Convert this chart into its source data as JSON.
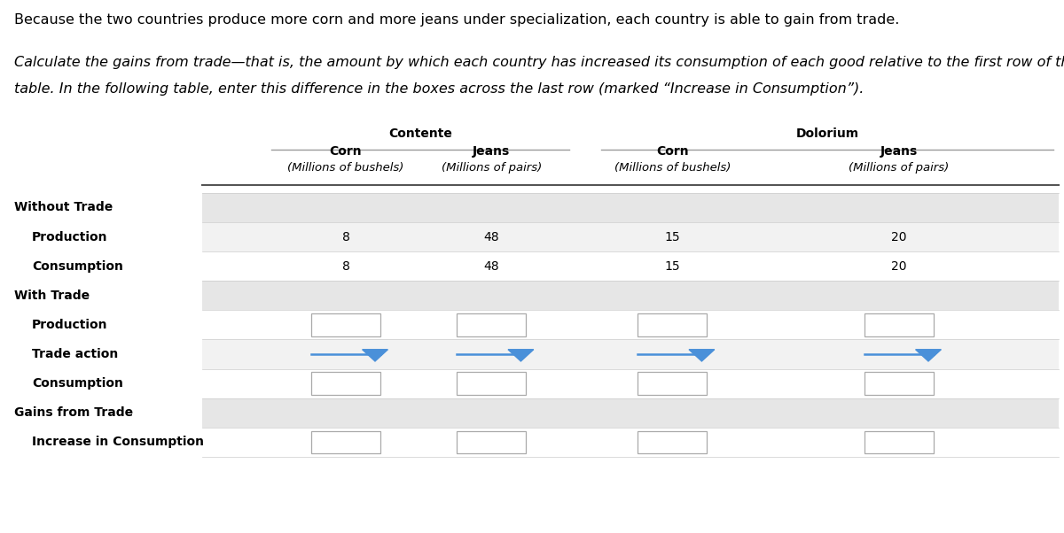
{
  "intro_text_1": "Because the two countries produce more corn and more jeans under specialization, each country is able to gain from trade.",
  "intro_text_2a": "Calculate the gains from trade—that is, the amount by which each country has increased its consumption of each good relative to the first row of the",
  "intro_text_2b": "table. In the following table, enter this difference in the boxes across the last row (marked “Increase in Consumption”).",
  "country1": "Contente",
  "country2": "Dolorium",
  "col_headers": [
    "Corn",
    "Jeans",
    "Corn",
    "Jeans"
  ],
  "col_subheaders": [
    "(Millions of bushels)",
    "(Millions of pairs)",
    "(Millions of bushels)",
    "(Millions of pairs)"
  ],
  "data_prod": [
    "8",
    "48",
    "15",
    "20"
  ],
  "data_cons": [
    "8",
    "48",
    "15",
    "20"
  ],
  "bg_white": "#ffffff",
  "bg_gray": "#e6e6e6",
  "bg_light": "#f2f2f2",
  "text_color": "#000000",
  "line_color": "#888888",
  "dropdown_color": "#4a90d9",
  "box_border_color": "#aaaaaa",
  "font_size_intro": 11.5,
  "font_size_table": 10,
  "font_size_sub": 9.5
}
